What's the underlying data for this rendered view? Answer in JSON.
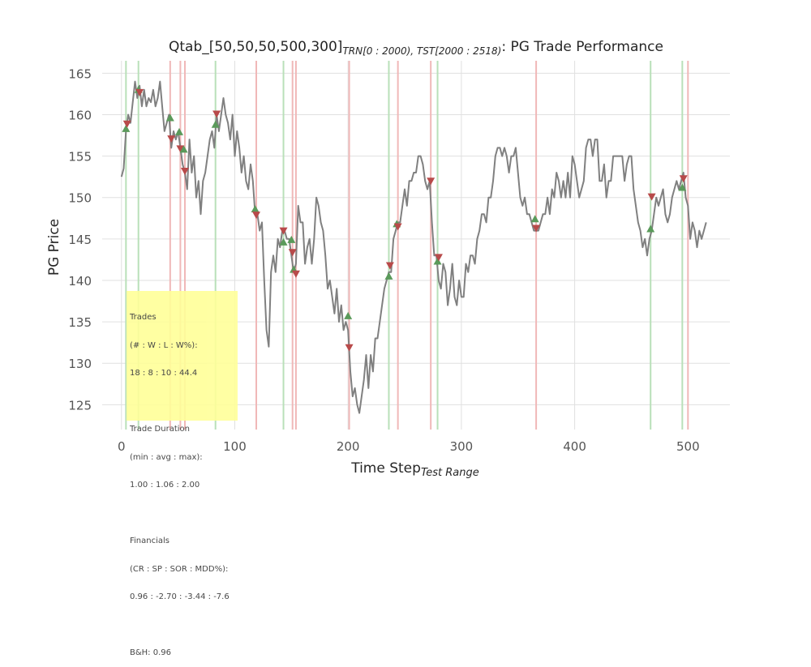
{
  "chart_data": {
    "type": "line",
    "title_main": "Qtab_[50,50,50,500,300]",
    "title_sub": "TRN[0 : 2000), TST[2000 : 2518)",
    "title_tail": ": PG Trade Performance",
    "xlabel_main": "Time Step",
    "xlabel_sub": "Test Range",
    "ylabel": "PG Price",
    "xlim": [
      -17,
      537
    ],
    "ylim": [
      122,
      166.5
    ],
    "xticks": [
      0,
      100,
      200,
      300,
      400,
      500
    ],
    "yticks": [
      125,
      130,
      135,
      140,
      145,
      150,
      155,
      160,
      165
    ],
    "grid": true,
    "colors": {
      "price_line": "#808080",
      "buy_marker": "#5a9a5a",
      "sell_marker": "#b84a4a",
      "buy_vline": "#b9e0b9",
      "sell_vline": "#f0b8b8",
      "grid": "#e0e0e0",
      "stats_box": "#ffff99"
    },
    "series": [
      {
        "values": [
          [
            0,
            152.5
          ],
          [
            2,
            153.5
          ],
          [
            4,
            158
          ],
          [
            6,
            160
          ],
          [
            8,
            159
          ],
          [
            10,
            161.5
          ],
          [
            12,
            164
          ],
          [
            14,
            162
          ],
          [
            16,
            163.5
          ],
          [
            18,
            161
          ],
          [
            20,
            163
          ],
          [
            22,
            161
          ],
          [
            24,
            162
          ],
          [
            26,
            161.5
          ],
          [
            28,
            163
          ],
          [
            30,
            161
          ],
          [
            32,
            162
          ],
          [
            34,
            164
          ],
          [
            36,
            161
          ],
          [
            38,
            158
          ],
          [
            40,
            159
          ],
          [
            42,
            160
          ],
          [
            44,
            156
          ],
          [
            46,
            158
          ],
          [
            48,
            157
          ],
          [
            50,
            158
          ],
          [
            52,
            156
          ],
          [
            54,
            154
          ],
          [
            56,
            153
          ],
          [
            58,
            151
          ],
          [
            60,
            157
          ],
          [
            62,
            153
          ],
          [
            64,
            155
          ],
          [
            66,
            150
          ],
          [
            68,
            152
          ],
          [
            70,
            148
          ],
          [
            72,
            152
          ],
          [
            74,
            153
          ],
          [
            76,
            155
          ],
          [
            78,
            157
          ],
          [
            80,
            158
          ],
          [
            82,
            156
          ],
          [
            84,
            160
          ],
          [
            86,
            158
          ],
          [
            88,
            160
          ],
          [
            90,
            162
          ],
          [
            92,
            160
          ],
          [
            94,
            159
          ],
          [
            96,
            157
          ],
          [
            98,
            160
          ],
          [
            100,
            155
          ],
          [
            102,
            158
          ],
          [
            104,
            156
          ],
          [
            106,
            153
          ],
          [
            108,
            155
          ],
          [
            110,
            152
          ],
          [
            112,
            151
          ],
          [
            114,
            154
          ],
          [
            116,
            152
          ],
          [
            118,
            148
          ],
          [
            120,
            148
          ],
          [
            122,
            146
          ],
          [
            124,
            147
          ],
          [
            126,
            140
          ],
          [
            128,
            134
          ],
          [
            130,
            132
          ],
          [
            132,
            141
          ],
          [
            134,
            143
          ],
          [
            136,
            141
          ],
          [
            138,
            145
          ],
          [
            140,
            144
          ],
          [
            142,
            146
          ],
          [
            144,
            146
          ],
          [
            146,
            145
          ],
          [
            148,
            145
          ],
          [
            150,
            143
          ],
          [
            152,
            141
          ],
          [
            154,
            142
          ],
          [
            156,
            149
          ],
          [
            158,
            147
          ],
          [
            160,
            147
          ],
          [
            162,
            142
          ],
          [
            164,
            144
          ],
          [
            166,
            145
          ],
          [
            168,
            142
          ],
          [
            170,
            145
          ],
          [
            172,
            150
          ],
          [
            174,
            149
          ],
          [
            176,
            147
          ],
          [
            178,
            146
          ],
          [
            180,
            143
          ],
          [
            182,
            139
          ],
          [
            184,
            140
          ],
          [
            186,
            138
          ],
          [
            188,
            136
          ],
          [
            190,
            139
          ],
          [
            192,
            135
          ],
          [
            194,
            137
          ],
          [
            196,
            134
          ],
          [
            198,
            135
          ],
          [
            200,
            134
          ],
          [
            202,
            129
          ],
          [
            204,
            126
          ],
          [
            206,
            127
          ],
          [
            208,
            125
          ],
          [
            210,
            124
          ],
          [
            212,
            126
          ],
          [
            214,
            128
          ],
          [
            216,
            131
          ],
          [
            218,
            127
          ],
          [
            220,
            131
          ],
          [
            222,
            129
          ],
          [
            224,
            133
          ],
          [
            226,
            133
          ],
          [
            228,
            135
          ],
          [
            230,
            137
          ],
          [
            232,
            139
          ],
          [
            234,
            140
          ],
          [
            236,
            141
          ],
          [
            238,
            141
          ],
          [
            240,
            145
          ],
          [
            242,
            146
          ],
          [
            244,
            147
          ],
          [
            246,
            147
          ],
          [
            248,
            149
          ],
          [
            250,
            151
          ],
          [
            252,
            149
          ],
          [
            254,
            152
          ],
          [
            256,
            152
          ],
          [
            258,
            153
          ],
          [
            260,
            153
          ],
          [
            262,
            155
          ],
          [
            264,
            155
          ],
          [
            266,
            154
          ],
          [
            268,
            152
          ],
          [
            270,
            151
          ],
          [
            272,
            152
          ],
          [
            274,
            147
          ],
          [
            276,
            143
          ],
          [
            278,
            143
          ],
          [
            280,
            140
          ],
          [
            282,
            139
          ],
          [
            284,
            142
          ],
          [
            286,
            141
          ],
          [
            288,
            137
          ],
          [
            290,
            139
          ],
          [
            292,
            142
          ],
          [
            294,
            138
          ],
          [
            296,
            137
          ],
          [
            298,
            140
          ],
          [
            300,
            138
          ],
          [
            302,
            138
          ],
          [
            304,
            142
          ],
          [
            306,
            141
          ],
          [
            308,
            143
          ],
          [
            310,
            143
          ],
          [
            312,
            142
          ],
          [
            314,
            145
          ],
          [
            316,
            146
          ],
          [
            318,
            148
          ],
          [
            320,
            148
          ],
          [
            322,
            147
          ],
          [
            324,
            150
          ],
          [
            326,
            150
          ],
          [
            328,
            152
          ],
          [
            330,
            155
          ],
          [
            332,
            156
          ],
          [
            334,
            156
          ],
          [
            336,
            155
          ],
          [
            338,
            156
          ],
          [
            340,
            155
          ],
          [
            342,
            153
          ],
          [
            344,
            155
          ],
          [
            346,
            155
          ],
          [
            348,
            156
          ],
          [
            350,
            153
          ],
          [
            352,
            150
          ],
          [
            354,
            149
          ],
          [
            356,
            150
          ],
          [
            358,
            148
          ],
          [
            360,
            148
          ],
          [
            362,
            147
          ],
          [
            364,
            146
          ],
          [
            366,
            146
          ],
          [
            368,
            146
          ],
          [
            370,
            147
          ],
          [
            372,
            148
          ],
          [
            374,
            148
          ],
          [
            376,
            150
          ],
          [
            378,
            148
          ],
          [
            380,
            151
          ],
          [
            382,
            150
          ],
          [
            384,
            153
          ],
          [
            386,
            152
          ],
          [
            388,
            150
          ],
          [
            390,
            152
          ],
          [
            392,
            150
          ],
          [
            394,
            153
          ],
          [
            396,
            150
          ],
          [
            398,
            155
          ],
          [
            400,
            154
          ],
          [
            402,
            152
          ],
          [
            404,
            150
          ],
          [
            406,
            151
          ],
          [
            408,
            152
          ],
          [
            410,
            156
          ],
          [
            412,
            157
          ],
          [
            414,
            157
          ],
          [
            416,
            155
          ],
          [
            418,
            157
          ],
          [
            420,
            157
          ],
          [
            422,
            152
          ],
          [
            424,
            152
          ],
          [
            426,
            154
          ],
          [
            428,
            150
          ],
          [
            430,
            152
          ],
          [
            432,
            152
          ],
          [
            434,
            155
          ],
          [
            436,
            155
          ],
          [
            438,
            155
          ],
          [
            440,
            155
          ],
          [
            442,
            155
          ],
          [
            444,
            152
          ],
          [
            446,
            154
          ],
          [
            448,
            155
          ],
          [
            450,
            155
          ],
          [
            452,
            151
          ],
          [
            454,
            149
          ],
          [
            456,
            147
          ],
          [
            458,
            146
          ],
          [
            460,
            144
          ],
          [
            462,
            145
          ],
          [
            464,
            143
          ],
          [
            466,
            145
          ],
          [
            468,
            146
          ],
          [
            470,
            148
          ],
          [
            472,
            150
          ],
          [
            474,
            149
          ],
          [
            476,
            150
          ],
          [
            478,
            151
          ],
          [
            480,
            148
          ],
          [
            482,
            147
          ],
          [
            484,
            148
          ],
          [
            486,
            150
          ],
          [
            488,
            151
          ],
          [
            490,
            152
          ],
          [
            492,
            151
          ],
          [
            494,
            152
          ],
          [
            496,
            153
          ],
          [
            498,
            150
          ],
          [
            500,
            149
          ],
          [
            502,
            145
          ],
          [
            504,
            147
          ],
          [
            506,
            146
          ],
          [
            508,
            144
          ],
          [
            510,
            146
          ],
          [
            512,
            145
          ],
          [
            514,
            146
          ],
          [
            516,
            147
          ]
        ]
      }
    ],
    "trades": [
      {
        "type": "buy",
        "x": 4,
        "y": 158.3
      },
      {
        "type": "sell",
        "x": 5,
        "y": 158.9
      },
      {
        "type": "buy",
        "x": 15,
        "y": 163
      },
      {
        "type": "sell",
        "x": 16,
        "y": 162.7
      },
      {
        "type": "buy",
        "x": 43,
        "y": 159.6
      },
      {
        "type": "sell",
        "x": 44,
        "y": 157.1
      },
      {
        "type": "buy",
        "x": 51,
        "y": 157.9
      },
      {
        "type": "sell",
        "x": 52,
        "y": 155.9
      },
      {
        "type": "buy",
        "x": 55,
        "y": 155.8
      },
      {
        "type": "sell",
        "x": 56,
        "y": 153.2
      },
      {
        "type": "buy",
        "x": 83,
        "y": 158.8
      },
      {
        "type": "sell",
        "x": 84,
        "y": 160.1
      },
      {
        "type": "buy",
        "x": 118,
        "y": 148.6
      },
      {
        "type": "sell",
        "x": 119,
        "y": 147.9
      },
      {
        "type": "buy",
        "x": 143,
        "y": 144.6
      },
      {
        "type": "sell",
        "x": 143,
        "y": 146
      },
      {
        "type": "buy",
        "x": 150,
        "y": 144.9
      },
      {
        "type": "sell",
        "x": 151,
        "y": 143.4
      },
      {
        "type": "buy",
        "x": 152,
        "y": 141.3
      },
      {
        "type": "sell",
        "x": 154,
        "y": 140.8
      },
      {
        "type": "buy",
        "x": 200,
        "y": 135.7
      },
      {
        "type": "sell",
        "x": 201,
        "y": 131.9
      },
      {
        "type": "buy",
        "x": 236,
        "y": 140.5
      },
      {
        "type": "sell",
        "x": 237,
        "y": 141.8
      },
      {
        "type": "buy",
        "x": 243,
        "y": 146.8
      },
      {
        "type": "sell",
        "x": 244,
        "y": 146.5
      },
      {
        "type": "sell",
        "x": 273,
        "y": 152
      },
      {
        "type": "buy",
        "x": 279,
        "y": 142.3
      },
      {
        "type": "sell",
        "x": 280,
        "y": 142.8
      },
      {
        "type": "buy",
        "x": 365,
        "y": 147.4
      },
      {
        "type": "sell",
        "x": 366,
        "y": 146.3
      },
      {
        "type": "buy",
        "x": 467,
        "y": 146.2
      },
      {
        "type": "sell",
        "x": 468,
        "y": 150.1
      },
      {
        "type": "buy",
        "x": 495,
        "y": 151.2
      },
      {
        "type": "sell",
        "x": 496,
        "y": 152.3
      }
    ],
    "buy_vlines": [
      4,
      15,
      83,
      143,
      236,
      279,
      467,
      495
    ],
    "sell_vlines": [
      43,
      52,
      56,
      119,
      151,
      154,
      201,
      244,
      273,
      366,
      500
    ]
  },
  "stats": {
    "trades_heading": "Trades",
    "trades_fields": "(# : W : L : W%):",
    "trades_values": "18 : 8 : 10 : 44.4",
    "duration_heading": "Trade Duration",
    "duration_fields": "(min : avg : max):",
    "duration_values": "1.00 : 1.06 : 2.00",
    "financials_heading": "Financials",
    "financials_fields": "(CR : SP : SOR : MDD%):",
    "financials_values": "0.96 : -2.70 : -3.44 : -7.6",
    "bh": "B&H: 0.96"
  }
}
